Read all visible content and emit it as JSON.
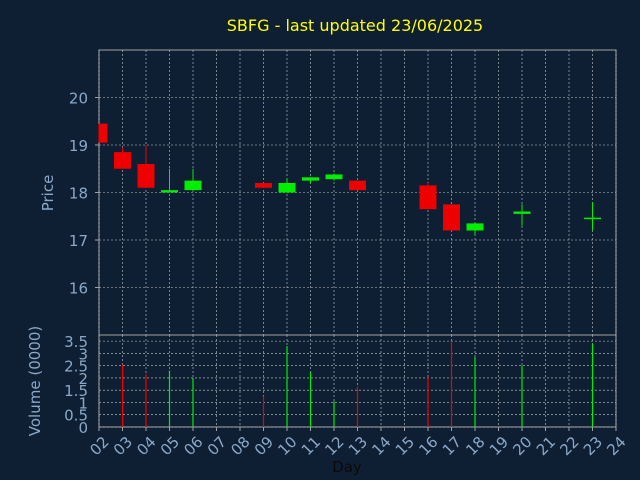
{
  "title": "SBFG - last updated 23/06/2025",
  "colors": {
    "background": "#0f1f33",
    "title": "#ffff00",
    "axis_text": "#8aa8c8",
    "up": "#00ee00",
    "down": "#ee0000",
    "grid": "#c8c8c8",
    "frame": "#a0a0a0"
  },
  "chart_data": [
    {
      "type": "candlestick",
      "ylabel": "Price",
      "ylim": [
        15,
        21
      ],
      "yticks": [
        16,
        17,
        18,
        19,
        20
      ],
      "xlim": [
        2,
        24
      ],
      "grid": true,
      "candles": [
        {
          "day": 2,
          "open": 19.45,
          "close": 19.05,
          "high": 19.45,
          "low": 19.05
        },
        {
          "day": 3,
          "open": 18.85,
          "close": 18.5,
          "high": 18.95,
          "low": 18.5
        },
        {
          "day": 4,
          "open": 18.6,
          "close": 18.1,
          "high": 19.0,
          "low": 18.1
        },
        {
          "day": 5,
          "open": 18.0,
          "close": 18.05,
          "high": 18.5,
          "low": 18.0
        },
        {
          "day": 6,
          "open": 18.05,
          "close": 18.25,
          "high": 18.5,
          "low": 18.05
        },
        {
          "day": 9,
          "open": 18.2,
          "close": 18.1,
          "high": 18.2,
          "low": 18.1
        },
        {
          "day": 10,
          "open": 18.0,
          "close": 18.2,
          "high": 18.3,
          "low": 18.0
        },
        {
          "day": 11,
          "open": 18.25,
          "close": 18.32,
          "high": 18.32,
          "low": 18.2
        },
        {
          "day": 12,
          "open": 18.28,
          "close": 18.38,
          "high": 18.4,
          "low": 18.25
        },
        {
          "day": 13,
          "open": 18.25,
          "close": 18.05,
          "high": 18.25,
          "low": 18.05
        },
        {
          "day": 16,
          "open": 18.15,
          "close": 17.65,
          "high": 18.2,
          "low": 17.65
        },
        {
          "day": 17,
          "open": 17.75,
          "close": 17.2,
          "high": 17.75,
          "low": 17.2
        },
        {
          "day": 18,
          "open": 17.2,
          "close": 17.35,
          "high": 17.35,
          "low": 17.1
        },
        {
          "day": 20,
          "open": 17.55,
          "close": 17.6,
          "high": 17.75,
          "low": 17.3
        },
        {
          "day": 23,
          "open": 17.47,
          "close": 17.47,
          "high": 17.8,
          "low": 17.2
        }
      ]
    },
    {
      "type": "bar",
      "xlabel": "Day",
      "ylabel": "Volume (0000)",
      "ylim": [
        0,
        3.75
      ],
      "yticks": [
        0,
        0.5,
        1,
        1.5,
        2,
        2.5,
        3,
        3.5
      ],
      "xlim": [
        2,
        24
      ],
      "xticks": [
        "02",
        "03",
        "04",
        "05",
        "06",
        "07",
        "08",
        "09",
        "10",
        "11",
        "12",
        "13",
        "14",
        "15",
        "16",
        "17",
        "18",
        "19",
        "20",
        "21",
        "22",
        "23",
        "24"
      ],
      "grid": true,
      "bars": [
        {
          "day": 3,
          "value": 2.55,
          "direction": "down"
        },
        {
          "day": 4,
          "value": 2.15,
          "direction": "down"
        },
        {
          "day": 5,
          "value": 2.3,
          "direction": "up"
        },
        {
          "day": 6,
          "value": 2.0,
          "direction": "up"
        },
        {
          "day": 9,
          "value": 1.25,
          "direction": "down"
        },
        {
          "day": 10,
          "value": 3.3,
          "direction": "up"
        },
        {
          "day": 11,
          "value": 2.25,
          "direction": "up"
        },
        {
          "day": 12,
          "value": 1.05,
          "direction": "up"
        },
        {
          "day": 13,
          "value": 1.65,
          "direction": "down"
        },
        {
          "day": 16,
          "value": 2.05,
          "direction": "down"
        },
        {
          "day": 17,
          "value": 3.5,
          "direction": "down"
        },
        {
          "day": 18,
          "value": 2.85,
          "direction": "up"
        },
        {
          "day": 20,
          "value": 2.5,
          "direction": "up"
        },
        {
          "day": 23,
          "value": 3.4,
          "direction": "up"
        }
      ]
    }
  ]
}
